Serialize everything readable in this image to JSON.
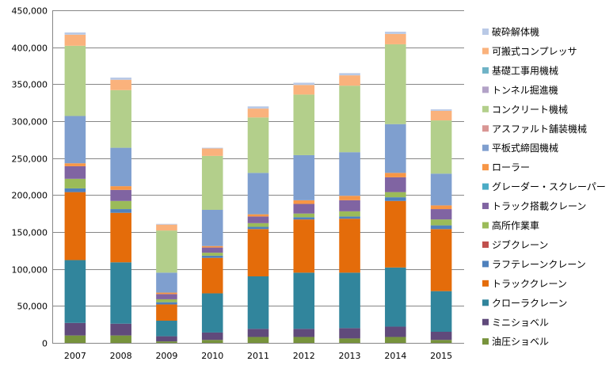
{
  "chart_data": {
    "type": "bar",
    "stacked": true,
    "title": "",
    "xlabel": "",
    "ylabel": "",
    "ylim": [
      0,
      450000
    ],
    "yticks": [
      0,
      50000,
      100000,
      150000,
      200000,
      250000,
      300000,
      350000,
      400000,
      450000
    ],
    "ytick_labels": [
      "0",
      "50,000",
      "100,000",
      "150,000",
      "200,000",
      "250,000",
      "300,000",
      "350,000",
      "400,000",
      "450,000"
    ],
    "grid": true,
    "legend_position": "right",
    "categories": [
      "2007",
      "2008",
      "2009",
      "2010",
      "2011",
      "2012",
      "2013",
      "2014",
      "2015"
    ],
    "series": [
      {
        "name": "油圧ショベル",
        "color": "#77933c",
        "values": [
          10000,
          10000,
          2000,
          4000,
          8000,
          8000,
          6000,
          8000,
          4000
        ]
      },
      {
        "name": "ミニショベル",
        "color": "#604a7b",
        "values": [
          17000,
          16000,
          7000,
          10000,
          11000,
          11000,
          14000,
          14000,
          11000
        ]
      },
      {
        "name": "クローラクレーン",
        "color": "#31859c",
        "values": [
          85000,
          83000,
          21000,
          53000,
          71000,
          76000,
          75000,
          80000,
          55000
        ]
      },
      {
        "name": "トラッククレーン",
        "color": "#e46c0a",
        "values": [
          92000,
          67000,
          22000,
          48000,
          64000,
          72000,
          73000,
          90000,
          84000
        ]
      },
      {
        "name": "ラフテレーンクレーン",
        "color": "#4f81bd",
        "values": [
          5000,
          5000,
          3000,
          3000,
          3000,
          3000,
          3000,
          5000,
          5000
        ]
      },
      {
        "name": "ジブクレーン",
        "color": "#c0504d",
        "values": [
          0,
          0,
          0,
          0,
          0,
          0,
          0,
          0,
          0
        ]
      },
      {
        "name": "高所作業車",
        "color": "#9bbb59",
        "values": [
          13000,
          11000,
          4000,
          4000,
          5000,
          5000,
          7000,
          7000,
          8000
        ]
      },
      {
        "name": "トラック搭載クレーン",
        "color": "#8064a2",
        "values": [
          17000,
          15000,
          7000,
          7000,
          9000,
          13000,
          15000,
          20000,
          14000
        ]
      },
      {
        "name": "グレーダー・スクレーパー",
        "color": "#4bacc6",
        "values": [
          0,
          0,
          0,
          0,
          0,
          0,
          0,
          0,
          0
        ]
      },
      {
        "name": "ローラー",
        "color": "#f79646",
        "values": [
          4000,
          5000,
          2000,
          2000,
          3000,
          5000,
          6000,
          6000,
          5000
        ]
      },
      {
        "name": "平板式締固機械",
        "color": "#7f9fcf",
        "values": [
          64000,
          52000,
          27000,
          49000,
          56000,
          61000,
          59000,
          66000,
          43000
        ]
      },
      {
        "name": "アスファルト舗装機械",
        "color": "#d99694",
        "values": [
          0,
          0,
          0,
          0,
          0,
          0,
          0,
          0,
          0
        ]
      },
      {
        "name": "コンクリート機械",
        "color": "#b3cf8b",
        "values": [
          95000,
          78000,
          57000,
          73000,
          75000,
          82000,
          90000,
          108000,
          72000
        ]
      },
      {
        "name": "トンネル掘進機",
        "color": "#b2a2c7",
        "values": [
          0,
          0,
          0,
          0,
          0,
          0,
          0,
          0,
          0
        ]
      },
      {
        "name": "基礎工事用機械",
        "color": "#6fb3c6",
        "values": [
          0,
          0,
          0,
          0,
          0,
          0,
          0,
          0,
          0
        ]
      },
      {
        "name": "可搬式コンプレッサ",
        "color": "#fab27c",
        "values": [
          15000,
          14000,
          8000,
          10000,
          12000,
          13000,
          14000,
          14000,
          13000
        ]
      },
      {
        "name": "破砕解体機",
        "color": "#b9c9e6",
        "values": [
          3000,
          3000,
          1000,
          1000,
          3000,
          3000,
          3000,
          3000,
          2000
        ]
      }
    ]
  }
}
